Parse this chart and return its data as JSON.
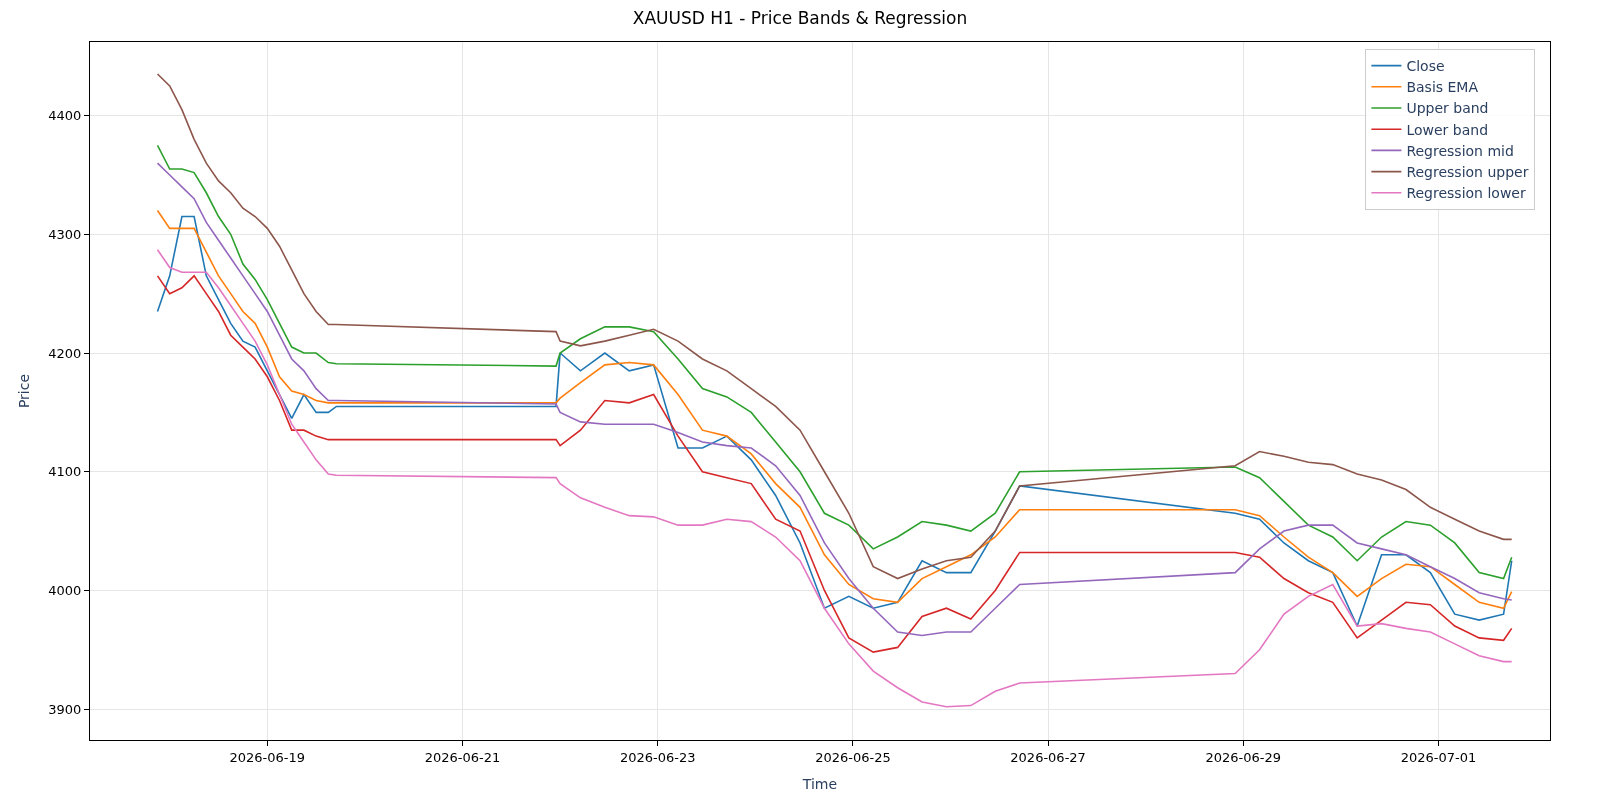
{
  "chart_data": {
    "type": "line",
    "title": "XAUUSD H1 - Price Bands & Regression",
    "xlabel": "Time",
    "ylabel": "Price",
    "x": [
      "2026-06-17T21:00",
      "2026-06-18T00:00",
      "2026-06-18T03:00",
      "2026-06-18T06:00",
      "2026-06-18T09:00",
      "2026-06-18T12:00",
      "2026-06-18T15:00",
      "2026-06-18T18:00",
      "2026-06-18T21:00",
      "2026-06-19T00:00",
      "2026-06-19T03:00",
      "2026-06-19T06:00",
      "2026-06-19T09:00",
      "2026-06-19T12:00",
      "2026-06-19T15:00",
      "2026-06-19T17:00",
      "2026-06-21T23:00",
      "2026-06-22T00:00",
      "2026-06-22T05:00",
      "2026-06-22T11:00",
      "2026-06-22T17:00",
      "2026-06-22T23:00",
      "2026-06-23T05:00",
      "2026-06-23T11:00",
      "2026-06-23T17:00",
      "2026-06-23T23:00",
      "2026-06-24T05:00",
      "2026-06-24T11:00",
      "2026-06-24T17:00",
      "2026-06-24T23:00",
      "2026-06-25T05:00",
      "2026-06-25T11:00",
      "2026-06-25T17:00",
      "2026-06-25T23:00",
      "2026-06-26T05:00",
      "2026-06-26T11:00",
      "2026-06-26T17:00",
      "2026-06-28T22:00",
      "2026-06-29T04:00",
      "2026-06-29T10:00",
      "2026-06-29T16:00",
      "2026-06-29T22:00",
      "2026-06-30T04:00",
      "2026-06-30T10:00",
      "2026-06-30T16:00",
      "2026-06-30T22:00",
      "2026-07-01T04:00",
      "2026-07-01T10:00",
      "2026-07-01T16:00",
      "2026-07-01T18:00"
    ],
    "series": [
      {
        "name": "Close",
        "color": "#1f77b4",
        "values": [
          4235,
          4265,
          4315,
          4315,
          4265,
          4245,
          4225,
          4210,
          4205,
          4185,
          4165,
          4145,
          4165,
          4150,
          4150,
          4155,
          4155,
          4200,
          4185,
          4200,
          4185,
          4190,
          4120,
          4120,
          4130,
          4110,
          4080,
          4040,
          3985,
          3995,
          3985,
          3990,
          4025,
          4015,
          4015,
          4050,
          4088,
          4065,
          4060,
          4040,
          4025,
          4015,
          3970,
          4030,
          4030,
          4015,
          3980,
          3975,
          3980,
          4025
        ]
      },
      {
        "name": "Basis EMA",
        "color": "#ff7f0e",
        "values": [
          4320,
          4305,
          4305,
          4305,
          4285,
          4265,
          4250,
          4235,
          4225,
          4205,
          4180,
          4168,
          4165,
          4160,
          4158,
          4158,
          4158,
          4162,
          4175,
          4190,
          4192,
          4190,
          4165,
          4135,
          4130,
          4115,
          4090,
          4070,
          4030,
          4005,
          3993,
          3990,
          4010,
          4020,
          4030,
          4045,
          4068,
          4068,
          4063,
          4045,
          4028,
          4015,
          3995,
          4010,
          4022,
          4020,
          4005,
          3990,
          3985,
          3999
        ]
      },
      {
        "name": "Upper band",
        "color": "#2ca02c",
        "values": [
          4375,
          4355,
          4355,
          4352,
          4335,
          4315,
          4300,
          4275,
          4262,
          4245,
          4225,
          4205,
          4200,
          4200,
          4192,
          4191,
          4189,
          4200,
          4212,
          4222,
          4222,
          4218,
          4195,
          4170,
          4163,
          4150,
          4125,
          4100,
          4065,
          4055,
          4035,
          4045,
          4058,
          4055,
          4050,
          4065,
          4100,
          4104,
          4095,
          4075,
          4055,
          4045,
          4025,
          4045,
          4058,
          4055,
          4040,
          4015,
          4010,
          4028
        ]
      },
      {
        "name": "Lower band",
        "color": "#d62728",
        "values": [
          4265,
          4250,
          4255,
          4265,
          4250,
          4235,
          4215,
          4205,
          4195,
          4180,
          4160,
          4135,
          4135,
          4130,
          4127,
          4127,
          4127,
          4122,
          4135,
          4160,
          4158,
          4165,
          4130,
          4100,
          4095,
          4090,
          4060,
          4050,
          4000,
          3960,
          3948,
          3952,
          3978,
          3985,
          3976,
          4000,
          4032,
          4032,
          4028,
          4010,
          3998,
          3990,
          3960,
          3975,
          3990,
          3988,
          3970,
          3960,
          3958,
          3968
        ]
      },
      {
        "name": "Regression mid",
        "color": "#9467bd",
        "values": [
          4360,
          4350,
          4340,
          4330,
          4310,
          4295,
          4280,
          4265,
          4250,
          4235,
          4215,
          4195,
          4185,
          4170,
          4160,
          4160,
          4157,
          4150,
          4142,
          4140,
          4140,
          4140,
          4133,
          4125,
          4122,
          4120,
          4105,
          4080,
          4040,
          4010,
          3985,
          3965,
          3962,
          3965,
          3965,
          3985,
          4005,
          4015,
          4035,
          4050,
          4055,
          4055,
          4040,
          4035,
          4030,
          4020,
          4010,
          3998,
          3993,
          3992
        ]
      },
      {
        "name": "Regression upper",
        "color": "#8c564b",
        "values": [
          4435,
          4425,
          4405,
          4380,
          4360,
          4345,
          4335,
          4322,
          4315,
          4305,
          4290,
          4270,
          4250,
          4235,
          4224,
          4224,
          4218,
          4210,
          4206,
          4210,
          4215,
          4220,
          4210,
          4195,
          4185,
          4170,
          4155,
          4135,
          4100,
          4065,
          4020,
          4010,
          4018,
          4025,
          4028,
          4050,
          4088,
          4105,
          4117,
          4113,
          4108,
          4106,
          4098,
          4093,
          4085,
          4070,
          4060,
          4050,
          4043,
          4043
        ]
      },
      {
        "name": "Regression lower",
        "color": "#e377c2",
        "values": [
          4287,
          4272,
          4268,
          4268,
          4268,
          4255,
          4240,
          4225,
          4210,
          4190,
          4165,
          4140,
          4125,
          4110,
          4098,
          4097,
          4095,
          4090,
          4078,
          4070,
          4063,
          4062,
          4055,
          4055,
          4060,
          4058,
          4045,
          4025,
          3985,
          3955,
          3932,
          3918,
          3906,
          3902,
          3903,
          3915,
          3922,
          3930,
          3950,
          3980,
          3995,
          4005,
          3970,
          3972,
          3968,
          3965,
          3955,
          3945,
          3940,
          3940
        ]
      }
    ],
    "xlim": [
      "2026-06-17T04:24",
      "2026-07-02T03:25"
    ],
    "xticks": [
      {
        "value": "2026-06-19",
        "label": "2026-06-19"
      },
      {
        "value": "2026-06-21",
        "label": "2026-06-21"
      },
      {
        "value": "2026-06-23",
        "label": "2026-06-23"
      },
      {
        "value": "2026-06-25",
        "label": "2026-06-25"
      },
      {
        "value": "2026-06-27",
        "label": "2026-06-27"
      },
      {
        "value": "2026-06-29",
        "label": "2026-06-29"
      },
      {
        "value": "2026-07-01",
        "label": "2026-07-01"
      }
    ],
    "ylim": [
      3874,
      4462
    ],
    "yticks": [
      3900,
      4000,
      4100,
      4200,
      4300,
      4400
    ],
    "grid": true,
    "legend": "top right",
    "marker": "none",
    "line_style": "solid"
  }
}
